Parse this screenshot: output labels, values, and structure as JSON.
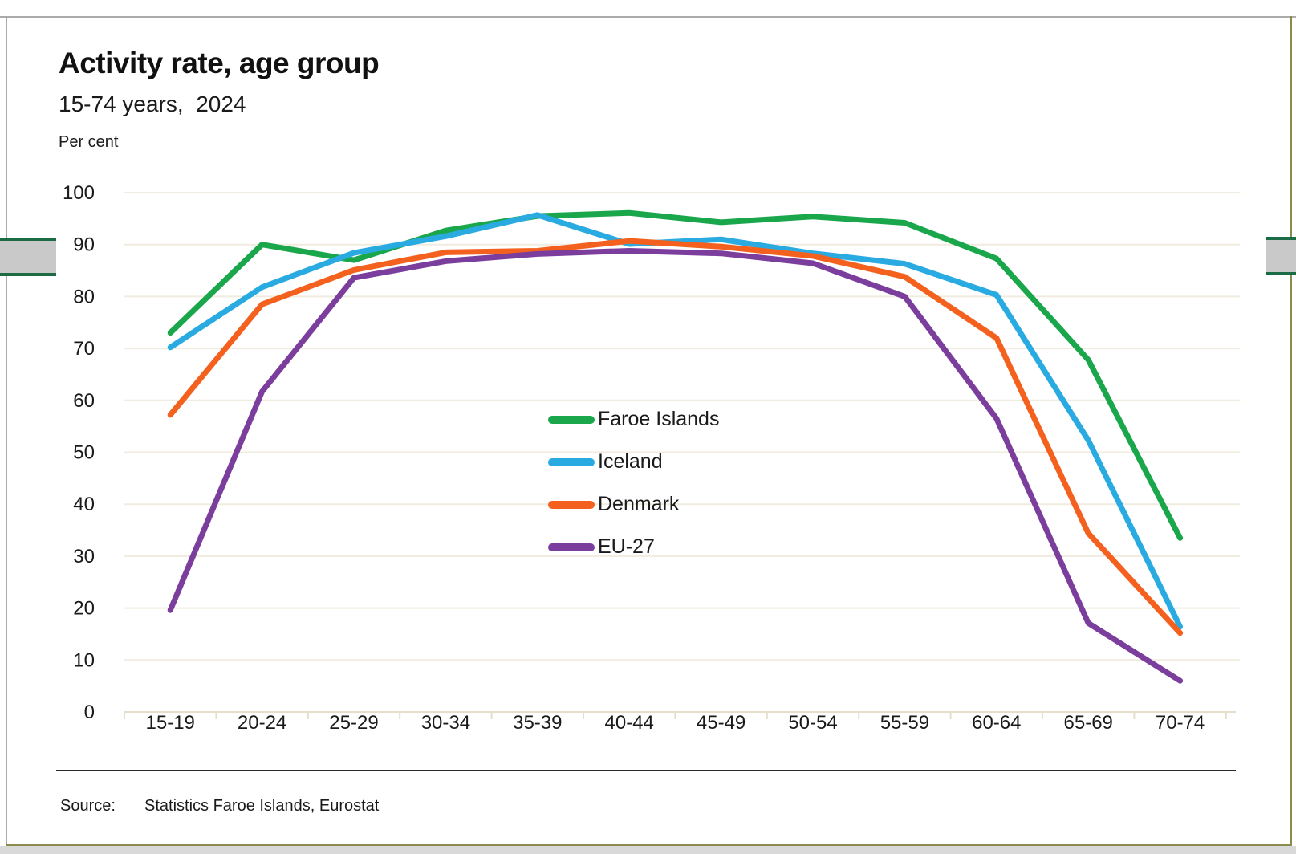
{
  "header": {
    "title": "Activity rate, age group",
    "subtitle": "15-74 years,  2024",
    "unit_label": "Per cent"
  },
  "footer": {
    "source_label": "Source:",
    "source_text": "Statistics Faroe Islands, Eurostat"
  },
  "chart_data": {
    "type": "line",
    "title": "Activity rate, age group",
    "subtitle": "15-74 years, 2024",
    "ylabel": "Per cent",
    "ylim": [
      0,
      100
    ],
    "ytick_step": 10,
    "yticks": [
      0,
      10,
      20,
      30,
      40,
      50,
      60,
      70,
      80,
      90,
      100
    ],
    "grid": true,
    "legend_position": "inside-center",
    "categories": [
      "15-19",
      "20-24",
      "25-29",
      "30-34",
      "35-39",
      "40-44",
      "45-49",
      "50-54",
      "55-59",
      "60-64",
      "65-69",
      "70-74"
    ],
    "series": [
      {
        "name": "Faroe Islands",
        "color": "#1AA74C",
        "values": [
          73,
          90,
          87,
          92.7,
          95.5,
          96.1,
          94.3,
          95.4,
          94.2,
          87.3,
          67.8,
          33.5
        ]
      },
      {
        "name": "Iceland",
        "color": "#29ABE2",
        "values": [
          70.2,
          81.8,
          88.4,
          91.6,
          95.7,
          90.1,
          91,
          88.3,
          86.3,
          80.3,
          52.3,
          16.4
        ]
      },
      {
        "name": "Denmark",
        "color": "#F4611E",
        "values": [
          57.2,
          78.5,
          85.1,
          88.5,
          88.8,
          90.7,
          89.6,
          87.8,
          83.8,
          72,
          34.4,
          15.2
        ]
      },
      {
        "name": "EU-27",
        "color": "#7B3E9D",
        "values": [
          19.6,
          61.7,
          83.6,
          86.8,
          88.2,
          88.8,
          88.3,
          86.4,
          80,
          56.5,
          17.1,
          6
        ]
      }
    ]
  },
  "frame": {
    "border_gray": "#ABABAB",
    "edge_olive": "#8B8B4B",
    "handle_fill": "#C9C9C9",
    "handle_border_green": "#1B6B45",
    "gridline_color": "#F0ECDF",
    "axis_color": "#E4DECB",
    "bottom_strip": "#D9D9D9",
    "text_color": "#1a1a1a"
  }
}
